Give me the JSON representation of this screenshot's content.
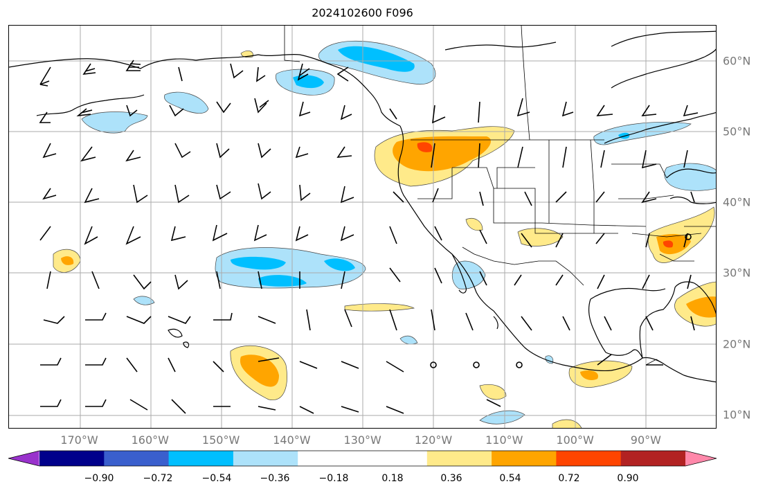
{
  "title": "2024102600 F096",
  "lon_labels": [
    {
      "text": "170°W",
      "lon": -170
    },
    {
      "text": "160°W",
      "lon": -160
    },
    {
      "text": "150°W",
      "lon": -150
    },
    {
      "text": "140°W",
      "lon": -140
    },
    {
      "text": "130°W",
      "lon": -130
    },
    {
      "text": "120°W",
      "lon": -120
    },
    {
      "text": "110°W",
      "lon": -110
    },
    {
      "text": "100°W",
      "lon": -100
    },
    {
      "text": "90°W",
      "lon": -90
    }
  ],
  "lat_labels": [
    {
      "text": "60°N",
      "lat": 60
    },
    {
      "text": "50°N",
      "lat": 50
    },
    {
      "text": "40°N",
      "lat": 40
    },
    {
      "text": "30°N",
      "lat": 30
    },
    {
      "text": "20°N",
      "lat": 20
    },
    {
      "text": "10°N",
      "lat": 10
    }
  ],
  "colorbar": {
    "colors": [
      "#9932cc",
      "#00008b",
      "#3a5fcd",
      "#00bfff",
      "#ade2fa",
      "#ffffff",
      "#ffffff",
      "#ffea8a",
      "#ffa500",
      "#ff4500",
      "#b22222",
      "#ff88aa"
    ],
    "ticks": [
      "−0.90",
      "−0.72",
      "−0.54",
      "−0.36",
      "−0.18",
      "0.18",
      "0.36",
      "0.54",
      "0.72",
      "0.90"
    ]
  }
}
